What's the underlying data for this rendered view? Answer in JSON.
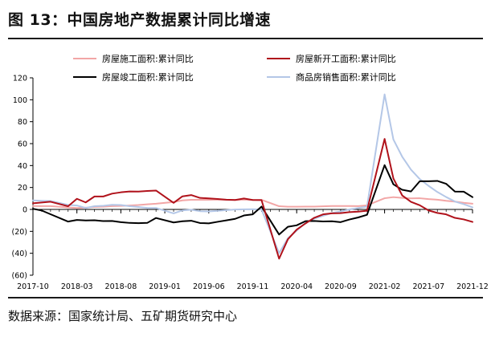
{
  "title": "图 13：中国房地产数据累计同比增速",
  "source": "数据来源：国家统计局、五矿期货研究中心",
  "chart_data": {
    "type": "line",
    "xlim": [
      "2017-10",
      "2021-12"
    ],
    "x_ticks": [
      "2017-10",
      "2018-03",
      "2018-08",
      "2019-01",
      "2019-06",
      "2019-11",
      "2020-04",
      "2020-09",
      "2021-02",
      "2021-07",
      "2021-12"
    ],
    "y_ticks": [
      "120",
      "100",
      "80",
      "60",
      "40",
      "20",
      "0",
      "(20)",
      "(40)",
      "(60)"
    ],
    "ylim": [
      -60,
      120
    ],
    "legend_placement": "top",
    "grid": false,
    "series": [
      {
        "name": "房屋施工面积:累计同比",
        "color": "#f2a6a6",
        "points": [
          [
            "2017-10",
            3.1
          ],
          [
            "2017-11",
            3.0
          ],
          [
            "2017-12",
            3.0
          ],
          [
            "2018-02",
            1.8
          ],
          [
            "2018-03",
            1.3
          ],
          [
            "2018-04",
            1.6
          ],
          [
            "2018-05",
            2.3
          ],
          [
            "2018-06",
            2.5
          ],
          [
            "2018-07",
            3.0
          ],
          [
            "2018-08",
            3.2
          ],
          [
            "2018-09",
            3.6
          ],
          [
            "2018-10",
            4.0
          ],
          [
            "2018-11",
            4.7
          ],
          [
            "2018-12",
            5.2
          ],
          [
            "2019-02",
            6.8
          ],
          [
            "2019-03",
            8.2
          ],
          [
            "2019-04",
            8.8
          ],
          [
            "2019-05",
            8.8
          ],
          [
            "2019-06",
            8.8
          ],
          [
            "2019-07",
            9.0
          ],
          [
            "2019-08",
            8.8
          ],
          [
            "2019-09",
            8.7
          ],
          [
            "2019-10",
            9.0
          ],
          [
            "2019-11",
            8.7
          ],
          [
            "2019-12",
            8.7
          ],
          [
            "2020-02",
            2.9
          ],
          [
            "2020-03",
            2.5
          ],
          [
            "2020-04",
            2.5
          ],
          [
            "2020-05",
            2.6
          ],
          [
            "2020-06",
            2.6
          ],
          [
            "2020-07",
            2.8
          ],
          [
            "2020-08",
            3.1
          ],
          [
            "2020-09",
            3.1
          ],
          [
            "2020-10",
            3.1
          ],
          [
            "2020-11",
            3.0
          ],
          [
            "2020-12",
            3.7
          ],
          [
            "2021-02",
            10.2
          ],
          [
            "2021-03",
            11.2
          ],
          [
            "2021-04",
            10.5
          ],
          [
            "2021-05",
            10.1
          ],
          [
            "2021-06",
            10.2
          ],
          [
            "2021-07",
            9.4
          ],
          [
            "2021-08",
            8.9
          ],
          [
            "2021-09",
            7.9
          ],
          [
            "2021-10",
            7.1
          ],
          [
            "2021-11",
            6.0
          ],
          [
            "2021-12",
            5.2
          ]
        ]
      },
      {
        "name": "房屋新开工面积:累计同比",
        "color": "#b0121b",
        "points": [
          [
            "2017-10",
            5.6
          ],
          [
            "2017-11",
            6.3
          ],
          [
            "2017-12",
            7.0
          ],
          [
            "2018-02",
            2.9
          ],
          [
            "2018-03",
            9.7
          ],
          [
            "2018-04",
            6.4
          ],
          [
            "2018-05",
            11.8
          ],
          [
            "2018-06",
            11.8
          ],
          [
            "2018-07",
            14.4
          ],
          [
            "2018-08",
            15.6
          ],
          [
            "2018-09",
            16.4
          ],
          [
            "2018-10",
            16.3
          ],
          [
            "2018-11",
            16.8
          ],
          [
            "2018-12",
            17.2
          ],
          [
            "2019-02",
            6.0
          ],
          [
            "2019-03",
            11.9
          ],
          [
            "2019-04",
            13.1
          ],
          [
            "2019-05",
            10.5
          ],
          [
            "2019-06",
            10.1
          ],
          [
            "2019-07",
            9.5
          ],
          [
            "2019-08",
            8.9
          ],
          [
            "2019-09",
            8.6
          ],
          [
            "2019-10",
            10.0
          ],
          [
            "2019-11",
            8.6
          ],
          [
            "2019-12",
            8.5
          ],
          [
            "2020-02",
            -44.9
          ],
          [
            "2020-03",
            -27.2
          ],
          [
            "2020-04",
            -18.4
          ],
          [
            "2020-05",
            -12.8
          ],
          [
            "2020-06",
            -7.6
          ],
          [
            "2020-07",
            -4.5
          ],
          [
            "2020-08",
            -3.6
          ],
          [
            "2020-09",
            -3.4
          ],
          [
            "2020-10",
            -2.5
          ],
          [
            "2020-11",
            -2.0
          ],
          [
            "2020-12",
            -1.2
          ],
          [
            "2021-02",
            64.3
          ],
          [
            "2021-03",
            28.2
          ],
          [
            "2021-04",
            12.8
          ],
          [
            "2021-05",
            6.9
          ],
          [
            "2021-06",
            3.8
          ],
          [
            "2021-07",
            -0.9
          ],
          [
            "2021-08",
            -3.2
          ],
          [
            "2021-09",
            -4.5
          ],
          [
            "2021-10",
            -7.7
          ],
          [
            "2021-11",
            -9.1
          ],
          [
            "2021-12",
            -11.4
          ]
        ]
      },
      {
        "name": "房屋竣工面积:累计同比",
        "color": "#000000",
        "points": [
          [
            "2017-10",
            0.6
          ],
          [
            "2017-11",
            -1.0
          ],
          [
            "2017-12",
            -4.4
          ],
          [
            "2018-02",
            -11.1
          ],
          [
            "2018-03",
            -9.6
          ],
          [
            "2018-04",
            -10.1
          ],
          [
            "2018-05",
            -9.9
          ],
          [
            "2018-06",
            -10.6
          ],
          [
            "2018-07",
            -10.5
          ],
          [
            "2018-08",
            -11.6
          ],
          [
            "2018-09",
            -12.3
          ],
          [
            "2018-10",
            -12.5
          ],
          [
            "2018-11",
            -12.3
          ],
          [
            "2018-12",
            -7.8
          ],
          [
            "2019-02",
            -11.9
          ],
          [
            "2019-03",
            -10.8
          ],
          [
            "2019-04",
            -10.3
          ],
          [
            "2019-05",
            -12.4
          ],
          [
            "2019-06",
            -12.7
          ],
          [
            "2019-07",
            -11.3
          ],
          [
            "2019-08",
            -10.0
          ],
          [
            "2019-09",
            -8.6
          ],
          [
            "2019-10",
            -5.5
          ],
          [
            "2019-11",
            -4.5
          ],
          [
            "2019-12",
            2.6
          ],
          [
            "2020-02",
            -22.9
          ],
          [
            "2020-03",
            -15.8
          ],
          [
            "2020-04",
            -14.5
          ],
          [
            "2020-05",
            -10.7
          ],
          [
            "2020-06",
            -10.5
          ],
          [
            "2020-07",
            -11.0
          ],
          [
            "2020-08",
            -10.8
          ],
          [
            "2020-09",
            -11.6
          ],
          [
            "2020-10",
            -9.2
          ],
          [
            "2020-11",
            -7.3
          ],
          [
            "2020-12",
            -4.9
          ],
          [
            "2021-02",
            40.4
          ],
          [
            "2021-03",
            22.9
          ],
          [
            "2021-04",
            17.9
          ],
          [
            "2021-05",
            16.4
          ],
          [
            "2021-06",
            25.7
          ],
          [
            "2021-07",
            25.7
          ],
          [
            "2021-08",
            26.0
          ],
          [
            "2021-09",
            23.4
          ],
          [
            "2021-10",
            16.3
          ],
          [
            "2021-11",
            16.2
          ],
          [
            "2021-12",
            11.2
          ]
        ]
      },
      {
        "name": "商品房销售面积:累计同比",
        "color": "#b4c7e7",
        "points": [
          [
            "2017-10",
            8.2
          ],
          [
            "2017-11",
            7.9
          ],
          [
            "2017-12",
            7.7
          ],
          [
            "2018-02",
            4.1
          ],
          [
            "2018-03",
            3.6
          ],
          [
            "2018-04",
            1.3
          ],
          [
            "2018-05",
            2.9
          ],
          [
            "2018-06",
            3.3
          ],
          [
            "2018-07",
            4.2
          ],
          [
            "2018-08",
            4.0
          ],
          [
            "2018-09",
            2.9
          ],
          [
            "2018-10",
            2.2
          ],
          [
            "2018-11",
            1.4
          ],
          [
            "2018-12",
            1.3
          ],
          [
            "2019-02",
            -3.6
          ],
          [
            "2019-03",
            -0.9
          ],
          [
            "2019-04",
            -0.3
          ],
          [
            "2019-05",
            -1.6
          ],
          [
            "2019-06",
            -1.8
          ],
          [
            "2019-07",
            -1.3
          ],
          [
            "2019-08",
            -0.6
          ],
          [
            "2019-09",
            -0.1
          ],
          [
            "2019-10",
            0.1
          ],
          [
            "2019-11",
            0.2
          ],
          [
            "2019-12",
            -0.1
          ],
          [
            "2020-02",
            -39.9
          ],
          [
            "2020-03",
            -26.3
          ],
          [
            "2020-04",
            -19.3
          ],
          [
            "2020-05",
            -12.3
          ],
          [
            "2020-06",
            -8.4
          ],
          [
            "2020-07",
            -5.8
          ],
          [
            "2020-08",
            -3.3
          ],
          [
            "2020-09",
            -1.8
          ],
          [
            "2020-10",
            0.0
          ],
          [
            "2020-11",
            1.3
          ],
          [
            "2020-12",
            2.6
          ],
          [
            "2021-02",
            104.9
          ],
          [
            "2021-03",
            63.8
          ],
          [
            "2021-04",
            48.1
          ],
          [
            "2021-05",
            36.3
          ],
          [
            "2021-06",
            27.7
          ],
          [
            "2021-07",
            21.5
          ],
          [
            "2021-08",
            15.9
          ],
          [
            "2021-09",
            11.3
          ],
          [
            "2021-10",
            7.2
          ],
          [
            "2021-11",
            4.8
          ],
          [
            "2021-12",
            1.9
          ]
        ]
      }
    ]
  }
}
